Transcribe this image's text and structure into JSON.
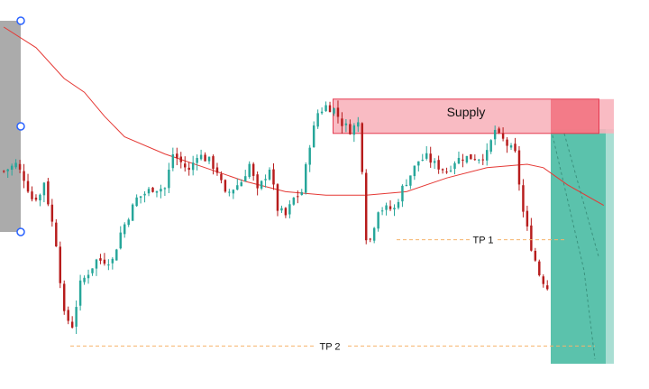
{
  "chart_data": {
    "type": "candlestick",
    "title": "",
    "xlabel": "",
    "ylabel": "",
    "x_axis_visible": false,
    "y_axis_visible": false,
    "grid": false,
    "ylim": [
      0,
      100
    ],
    "n_bars": 150,
    "colors": {
      "up": "#26a69a",
      "down": "#b71c1c",
      "moving_average": "#e53935",
      "supply_fill": "#f8b4bc",
      "supply_border": "#e53950",
      "target_zone": "#5bc2ac",
      "target_zone_light": "#a9ded3",
      "selection_zone": "#a6a6a6",
      "handle": "#2962ff",
      "tp_line": "#f6b26b"
    },
    "anchors": [
      [
        0,
        58
      ],
      [
        3,
        60
      ],
      [
        5,
        56
      ],
      [
        7,
        50
      ],
      [
        9,
        51
      ],
      [
        10,
        55
      ],
      [
        13,
        37
      ],
      [
        15,
        16
      ],
      [
        17,
        13
      ],
      [
        19,
        25
      ],
      [
        23,
        32
      ],
      [
        27,
        32
      ],
      [
        29,
        40
      ],
      [
        33,
        50
      ],
      [
        37,
        53
      ],
      [
        40,
        53
      ],
      [
        42,
        63
      ],
      [
        46,
        58
      ],
      [
        48,
        63
      ],
      [
        51,
        61
      ],
      [
        53,
        58
      ],
      [
        55,
        51
      ],
      [
        59,
        55
      ],
      [
        61,
        60
      ],
      [
        63,
        52
      ],
      [
        66,
        59
      ],
      [
        68,
        47
      ],
      [
        70,
        45
      ],
      [
        72,
        50
      ],
      [
        74,
        52
      ],
      [
        76,
        66
      ],
      [
        78,
        75
      ],
      [
        80,
        77
      ],
      [
        82,
        76
      ],
      [
        84,
        72
      ],
      [
        86,
        70
      ],
      [
        88,
        72
      ],
      [
        89,
        59
      ],
      [
        90,
        39
      ],
      [
        91,
        38
      ],
      [
        93,
        47
      ],
      [
        95,
        47
      ],
      [
        97,
        47
      ],
      [
        99,
        53
      ],
      [
        100,
        55
      ],
      [
        103,
        61
      ],
      [
        105,
        62
      ],
      [
        107,
        60
      ],
      [
        110,
        58
      ],
      [
        112,
        61
      ],
      [
        114,
        62
      ],
      [
        118,
        62
      ],
      [
        120,
        63
      ],
      [
        122,
        70
      ],
      [
        123,
        68
      ],
      [
        124,
        67
      ],
      [
        127,
        63
      ],
      [
        129,
        46
      ],
      [
        131,
        36
      ],
      [
        133,
        28
      ],
      [
        135,
        24
      ]
    ],
    "moving_average": [
      [
        0,
        100
      ],
      [
        8,
        94
      ],
      [
        15,
        85
      ],
      [
        20,
        81
      ],
      [
        25,
        74
      ],
      [
        30,
        68
      ],
      [
        40,
        63
      ],
      [
        50,
        59
      ],
      [
        60,
        55
      ],
      [
        70,
        52
      ],
      [
        80,
        51
      ],
      [
        90,
        51
      ],
      [
        100,
        52
      ],
      [
        110,
        56
      ],
      [
        120,
        59
      ],
      [
        130,
        60
      ],
      [
        134,
        59
      ],
      [
        140,
        54
      ],
      [
        149,
        48
      ]
    ],
    "zones": {
      "supply": {
        "label": "Supply",
        "top": 79,
        "bottom": 69
      },
      "tp1": {
        "label": "TP 1",
        "value": 38
      },
      "tp2": {
        "label": "TP 2",
        "value": 7
      }
    }
  }
}
